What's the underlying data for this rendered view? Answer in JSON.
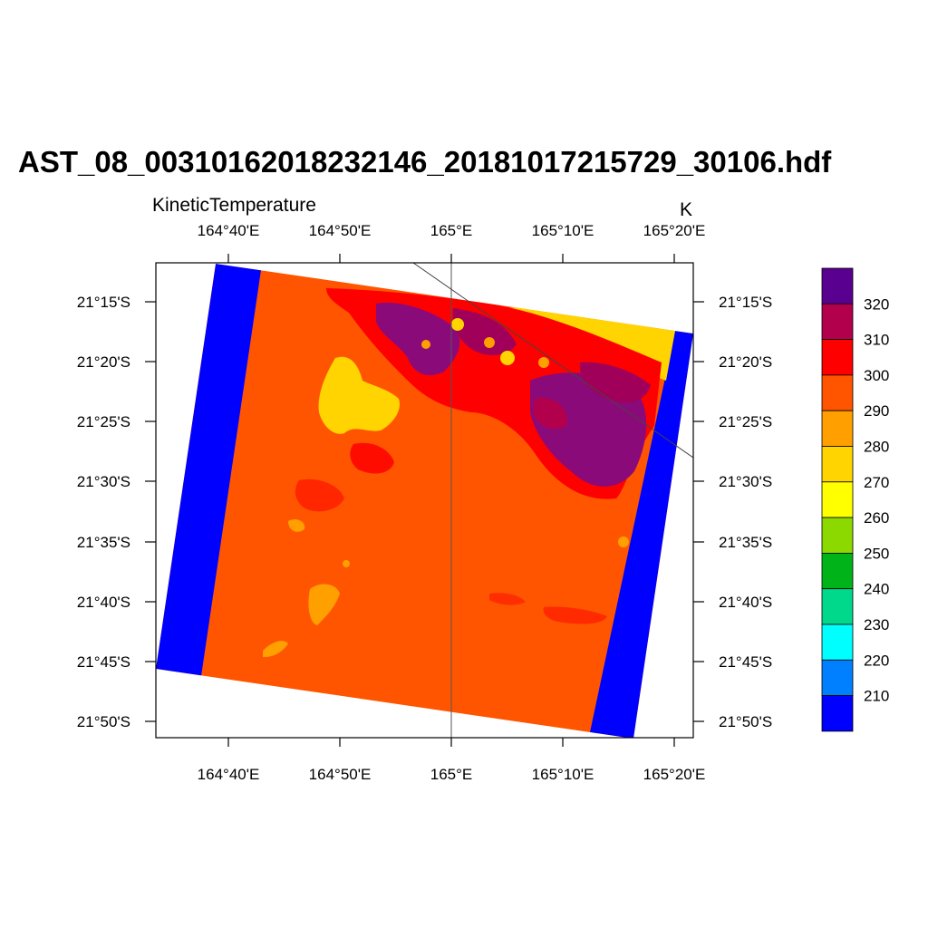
{
  "title": "AST_08_00310162018232146_20181017215729_30106.hdf",
  "variable": "KineticTemperature",
  "units": "K",
  "map": {
    "projection": "cylindrical equidistant",
    "lon_ticks": [
      "164°40'E",
      "164°50'E",
      "165°E",
      "165°10'E",
      "165°20'E"
    ],
    "lat_ticks": [
      "21°15'S",
      "21°20'S",
      "21°25'S",
      "21°30'S",
      "21°35'S",
      "21°40'S",
      "21°45'S",
      "21°50'S"
    ],
    "extent": {
      "lon_min": "164°33'E",
      "lon_max": "165°22'E",
      "lat_max": "21°12'S",
      "lat_min": "21°52'S"
    },
    "colors": {
      "fill_value": "#0000ff",
      "background_field": "#ff5500",
      "warm_patches": "#ffa000",
      "yellow_patches": "#ffd400",
      "hot_patches": "#ff0000",
      "hottest_patches": "#a0005a",
      "purple_patches": "#8b0a7a"
    }
  },
  "colorbar": {
    "labels": [
      "210",
      "220",
      "230",
      "240",
      "250",
      "260",
      "270",
      "280",
      "290",
      "300",
      "310",
      "320"
    ],
    "colors": [
      "#0000ff",
      "#0080ff",
      "#00ffff",
      "#00d98b",
      "#00b318",
      "#8cd900",
      "#ffff00",
      "#ffd400",
      "#ffa000",
      "#ff5500",
      "#ff0000",
      "#b3004d",
      "#5a0090"
    ]
  }
}
